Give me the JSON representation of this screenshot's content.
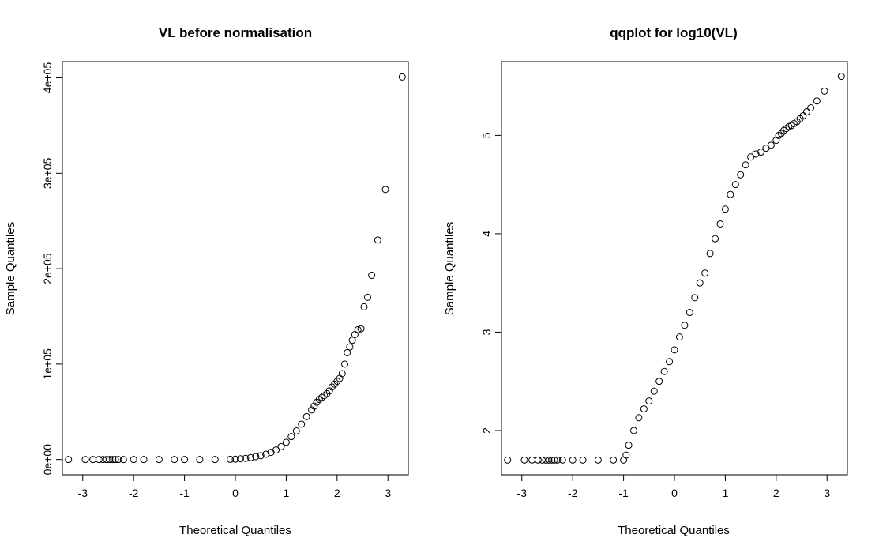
{
  "chart_data": [
    {
      "type": "scatter",
      "title": "VL before normalisation",
      "xlabel": "Theoretical Quantiles",
      "ylabel": "Sample Quantiles",
      "xlim": [
        -3.4,
        3.4
      ],
      "ylim": [
        -16000,
        417000
      ],
      "x_ticks": [
        -3,
        -2,
        -1,
        0,
        1,
        2,
        3
      ],
      "x_tick_labels": [
        "-3",
        "-2",
        "-1",
        "0",
        "1",
        "2",
        "3"
      ],
      "y_ticks": [
        0,
        100000,
        200000,
        300000,
        400000
      ],
      "y_tick_labels": [
        "0e+00",
        "1e+05",
        "2e+05",
        "3e+05",
        "4e+05"
      ],
      "grid": false,
      "series": [
        {
          "x": [
            -3.28,
            -2.95,
            -2.8,
            -2.68,
            -2.6,
            -2.53,
            -2.47,
            -2.41,
            -2.36,
            -2.3,
            -2.2,
            -2.0,
            -1.8,
            -1.5,
            -1.2,
            -1.0,
            -0.7,
            -0.4,
            -0.1,
            0.0,
            0.1,
            0.2,
            0.3,
            0.4,
            0.5,
            0.6,
            0.7,
            0.8,
            0.9,
            1.0,
            1.1,
            1.2,
            1.3,
            1.4,
            1.5,
            1.55,
            1.6,
            1.65,
            1.7,
            1.75,
            1.8,
            1.85,
            1.9,
            1.95,
            2.0,
            2.05,
            2.1,
            2.15,
            2.2,
            2.25,
            2.3,
            2.35,
            2.41,
            2.47,
            2.53,
            2.6,
            2.68,
            2.8,
            2.95,
            3.28
          ],
          "y": [
            0,
            0,
            0,
            0,
            0,
            0,
            0,
            0,
            0,
            0,
            0,
            0,
            0,
            0,
            0,
            0,
            0,
            0,
            200,
            400,
            800,
            1200,
            2000,
            3000,
            4000,
            5500,
            7500,
            10000,
            13500,
            18000,
            24000,
            30000,
            37000,
            45000,
            52000,
            56000,
            60000,
            63000,
            65000,
            67000,
            69000,
            72000,
            76000,
            79000,
            82000,
            85000,
            90000,
            100000,
            112000,
            118000,
            125000,
            131000,
            136000,
            137000,
            160000,
            170000,
            193000,
            230000,
            283000,
            401000
          ]
        }
      ]
    },
    {
      "type": "scatter",
      "title": "qqplot for log10(VL)",
      "xlabel": "Theoretical Quantiles",
      "ylabel": "Sample Quantiles",
      "xlim": [
        -3.4,
        3.4
      ],
      "ylim": [
        1.55,
        5.75
      ],
      "x_ticks": [
        -3,
        -2,
        -1,
        0,
        1,
        2,
        3
      ],
      "x_tick_labels": [
        "-3",
        "-2",
        "-1",
        "0",
        "1",
        "2",
        "3"
      ],
      "y_ticks": [
        2,
        3,
        4,
        5
      ],
      "y_tick_labels": [
        "2",
        "3",
        "4",
        "5"
      ],
      "grid": false,
      "series": [
        {
          "x": [
            -3.28,
            -2.95,
            -2.8,
            -2.68,
            -2.6,
            -2.53,
            -2.47,
            -2.41,
            -2.36,
            -2.3,
            -2.2,
            -2.0,
            -1.8,
            -1.5,
            -1.2,
            -1.0,
            -0.95,
            -0.9,
            -0.8,
            -0.7,
            -0.6,
            -0.5,
            -0.4,
            -0.3,
            -0.2,
            -0.1,
            0.0,
            0.1,
            0.2,
            0.3,
            0.4,
            0.5,
            0.6,
            0.7,
            0.8,
            0.9,
            1.0,
            1.1,
            1.2,
            1.3,
            1.4,
            1.5,
            1.6,
            1.7,
            1.8,
            1.9,
            2.0,
            2.05,
            2.1,
            2.15,
            2.2,
            2.25,
            2.3,
            2.35,
            2.41,
            2.47,
            2.53,
            2.6,
            2.68,
            2.8,
            2.95,
            3.28
          ],
          "y": [
            1.7,
            1.7,
            1.7,
            1.7,
            1.7,
            1.7,
            1.7,
            1.7,
            1.7,
            1.7,
            1.7,
            1.7,
            1.7,
            1.7,
            1.7,
            1.7,
            1.75,
            1.85,
            2.0,
            2.13,
            2.22,
            2.3,
            2.4,
            2.5,
            2.6,
            2.7,
            2.82,
            2.95,
            3.07,
            3.2,
            3.35,
            3.5,
            3.6,
            3.8,
            3.95,
            4.1,
            4.25,
            4.4,
            4.5,
            4.6,
            4.7,
            4.78,
            4.81,
            4.83,
            4.87,
            4.9,
            4.95,
            5.0,
            5.02,
            5.05,
            5.07,
            5.09,
            5.1,
            5.12,
            5.14,
            5.17,
            5.2,
            5.24,
            5.28,
            5.35,
            5.45,
            5.6
          ]
        }
      ]
    }
  ]
}
